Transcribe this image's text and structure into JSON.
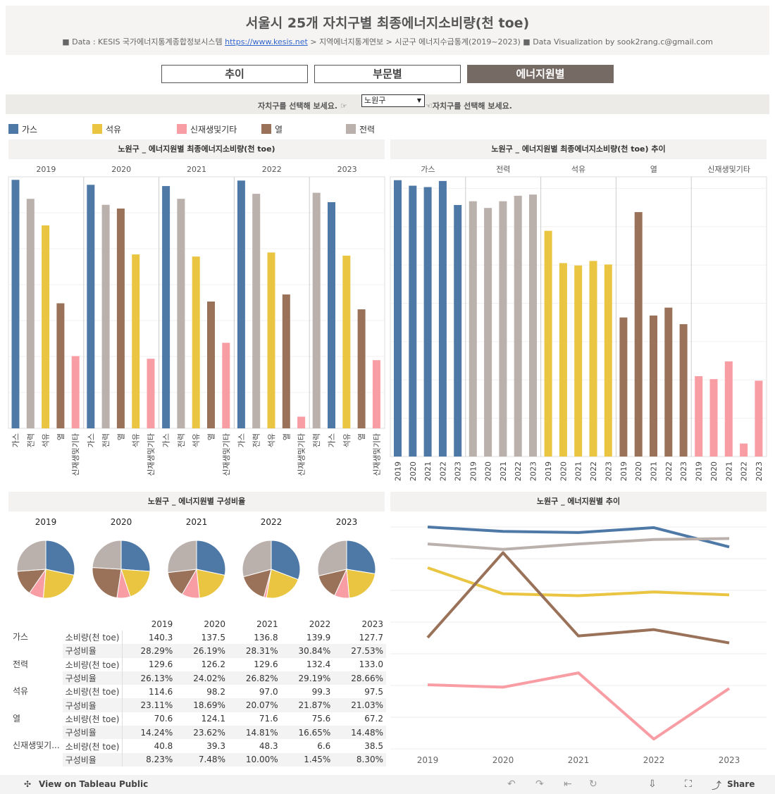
{
  "header": {
    "title": "서울시 25개 자치구별 최종에너지소비량(천 toe)",
    "source_prefix": "■ Data : KESIS 국가에너지통계종합정보시스템",
    "source_link": "https://www.kesis.net",
    "source_suffix": "> 지역에너지통계연보 > 시군구 에너지수급통계(2019~2023)  ■ Data Visualization by sook2rang.c@gmail.com"
  },
  "tabs": [
    "추이",
    "부문별",
    "에너지원별"
  ],
  "selector": {
    "prompt_left": "자치구를 선택해 보세요. ☞",
    "value": "노원구",
    "prompt_right": "☜자치구를 선택해 보세요."
  },
  "legend": [
    {
      "label": "가스",
      "color": "#4e79a7"
    },
    {
      "label": "석유",
      "color": "#e9c542"
    },
    {
      "label": "신재생및기타",
      "color": "#f99da4"
    },
    {
      "label": "열",
      "color": "#9a7259"
    },
    {
      "label": "전력",
      "color": "#bab0ac"
    }
  ],
  "panels": {
    "p1_title": "노원구 _ 에너지원별 최종에너지소비량(천 toe)",
    "p2_title": "노원구 _ 에너지원별 최종에너지소비량(천 toe) 추이",
    "p3_title": "노원구 _ 에너지원별 구성비율",
    "p4_title": "노원구 _ 에너지원별 추이"
  },
  "table": {
    "metric_consumption": "소비량(천 toe)",
    "metric_share": "구성비율",
    "source_label_short": "신재생및기..."
  },
  "chart_data": [
    {
      "type": "bar",
      "title": "노원구 _ 에너지원별 최종에너지소비량(천 toe)",
      "years": [
        "2019",
        "2020",
        "2021",
        "2022",
        "2023"
      ],
      "sources": [
        "가스",
        "전력",
        "석유",
        "열",
        "신재생및기타"
      ],
      "sort": "descending per year",
      "series": [
        {
          "name": "가스",
          "color": "#4e79a7",
          "values": [
            140.3,
            137.5,
            136.8,
            139.9,
            127.7
          ]
        },
        {
          "name": "전력",
          "color": "#bab0ac",
          "values": [
            129.6,
            126.2,
            129.6,
            132.4,
            133.0
          ]
        },
        {
          "name": "석유",
          "color": "#e9c542",
          "values": [
            114.6,
            98.2,
            97.0,
            99.3,
            97.5
          ]
        },
        {
          "name": "열",
          "color": "#9a7259",
          "values": [
            70.6,
            124.1,
            71.6,
            75.6,
            67.2
          ]
        },
        {
          "name": "신재생및기타",
          "color": "#f99da4",
          "values": [
            40.8,
            39.3,
            48.3,
            6.6,
            38.5
          ]
        }
      ],
      "ylim": [
        0,
        142
      ]
    },
    {
      "type": "bar",
      "title": "노원구 _ 에너지원별 최종에너지소비량(천 toe) 추이",
      "groups": [
        "가스",
        "전력",
        "석유",
        "열",
        "신재생및기타"
      ],
      "years": [
        "2019",
        "2020",
        "2021",
        "2022",
        "2023"
      ],
      "ylim": [
        0,
        142
      ]
    },
    {
      "type": "pie",
      "title": "노원구 _ 에너지원별 구성비율",
      "years": [
        "2019",
        "2020",
        "2021",
        "2022",
        "2023"
      ],
      "shares": {
        "가스": [
          "28.29%",
          "26.19%",
          "28.31%",
          "30.84%",
          "27.53%"
        ],
        "전력": [
          "26.13%",
          "24.02%",
          "26.82%",
          "29.19%",
          "28.66%"
        ],
        "석유": [
          "23.11%",
          "18.69%",
          "20.07%",
          "21.87%",
          "21.03%"
        ],
        "열": [
          "14.24%",
          "23.62%",
          "14.81%",
          "16.65%",
          "14.48%"
        ],
        "신재생및기타": [
          "8.23%",
          "7.48%",
          "10.00%",
          "1.45%",
          "8.30%"
        ]
      }
    },
    {
      "type": "line",
      "title": "노원구 _ 에너지원별 추이",
      "x": [
        "2019",
        "2020",
        "2021",
        "2022",
        "2023"
      ],
      "ylim": [
        0,
        147
      ]
    }
  ]
}
